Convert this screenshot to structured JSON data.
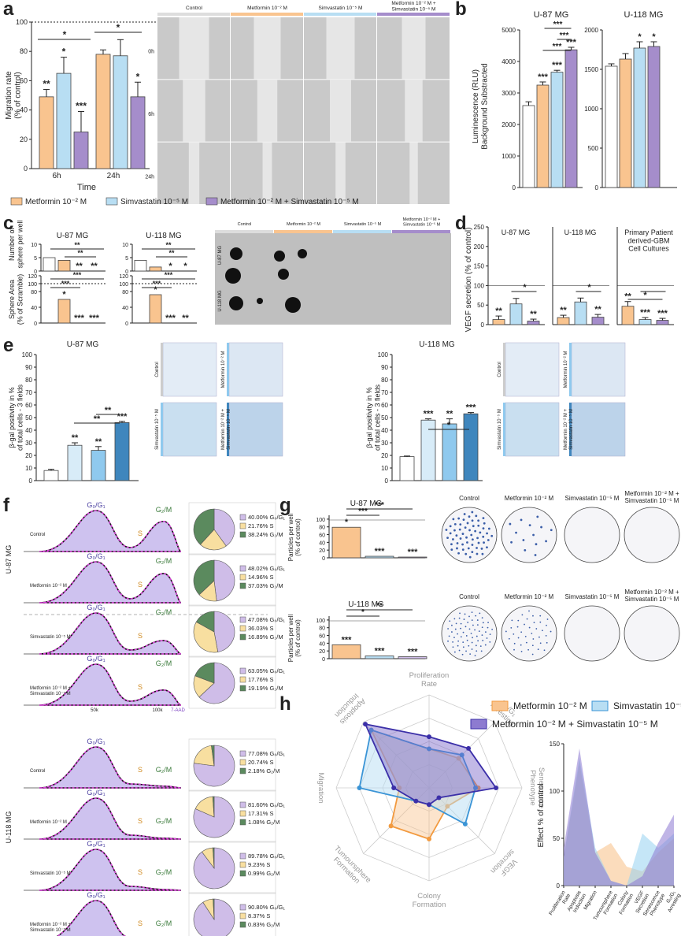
{
  "panel_labels": [
    "a",
    "b",
    "c",
    "d",
    "e",
    "f",
    "g",
    "h"
  ],
  "colors": {
    "control": "#ffffff",
    "metformin": "#f9c48f",
    "simvastatin": "#b8def3",
    "combo": "#a58dcb",
    "dark_combo": "#5b3fa8",
    "e_light": "#d8ecf8",
    "e_mid": "#8fc9ee",
    "e_dark": "#3f86bd",
    "g_combo": "#cfbde8"
  },
  "legend": {
    "metformin": "Metformin 10⁻² M",
    "simvastatin": "Simvastatin 10⁻⁵ M",
    "combo": "Metformin 10⁻² M + Simvastatin 10⁻⁵ M"
  },
  "panel_a": {
    "ylabel": "Migration rate\n(% of control)",
    "xlabel": "Time",
    "groups": [
      "6h",
      "24h"
    ],
    "yticks": [
      "0",
      "20",
      "40",
      "60",
      "80",
      "100"
    ],
    "values": [
      [
        49,
        65,
        25
      ],
      [
        78,
        77,
        49
      ]
    ],
    "errors": [
      [
        5,
        11,
        14
      ],
      [
        3,
        11,
        10
      ]
    ],
    "stars": [
      [
        "**",
        "*",
        "***"
      ],
      [
        "",
        "",
        "*"
      ]
    ],
    "bracket_star": "*",
    "image_cols": [
      "Control",
      "Metformin 10⁻² M",
      "Simvastatin 10⁻⁵ M",
      "Metformin 10⁻² M +\nSimvastatin 10⁻⁵ M"
    ],
    "image_rows": [
      "0h",
      "6h",
      "24h"
    ]
  },
  "panel_b": {
    "ylabel": "Luminescence (RLU)\nBackground Substracted",
    "charts": [
      {
        "title": "U-87 MG",
        "yticks": [
          "0",
          "1000",
          "2000",
          "3000",
          "4000",
          "5000"
        ],
        "ymax": 5000,
        "values": [
          2600,
          3250,
          3660,
          4370
        ],
        "errors": [
          120,
          100,
          60,
          80
        ],
        "stars": [
          "",
          "***",
          "***",
          "***"
        ],
        "brackets": [
          "***",
          "***",
          "***"
        ]
      },
      {
        "title": "U-118 MG",
        "yticks": [
          "0",
          "500",
          "1000",
          "1500",
          "2000"
        ],
        "ymax": 2000,
        "values": [
          1540,
          1630,
          1770,
          1790
        ],
        "errors": [
          30,
          70,
          80,
          60
        ],
        "stars": [
          "",
          "",
          "*",
          "*"
        ],
        "brackets": []
      }
    ]
  },
  "panel_c": {
    "ylabel_top": "Number of\nsphere per well",
    "ylabel_bottom": "Sphere Area\n(% of Scramble)",
    "charts": [
      {
        "title": "U-87 MG",
        "yticks_top": [
          "0",
          "5",
          "10"
        ],
        "top_values": [
          5,
          4,
          0,
          0
        ],
        "bottom_yticks": [
          "0",
          "20",
          "40",
          "60",
          "80",
          "100",
          "120"
        ],
        "bottom_values": [
          0,
          60,
          0,
          0
        ],
        "top_stars": [
          "",
          "",
          "**",
          "**"
        ],
        "bottom_stars": [
          "",
          "*",
          "***",
          "***"
        ],
        "top_brackets": [
          "**",
          "**"
        ],
        "bottom_brackets": [
          "***",
          "***"
        ]
      },
      {
        "title": "U-118 MG",
        "yticks_top": [
          "0",
          "5",
          "10"
        ],
        "top_values": [
          4,
          1.5,
          0,
          0
        ],
        "bottom_yticks": [
          "0",
          "20",
          "40",
          "60",
          "80",
          "100",
          "120"
        ],
        "bottom_values": [
          0,
          72,
          0,
          0
        ],
        "top_stars": [
          "",
          "",
          "*",
          "*"
        ],
        "bottom_stars": [
          "",
          "*",
          "***",
          "**"
        ],
        "top_brackets": [
          "**",
          "**"
        ],
        "bottom_brackets": [
          "***",
          "***"
        ]
      }
    ],
    "image_cols": [
      "Control",
      "Metformin 10⁻² M",
      "Simvastatin 10⁻⁵ M",
      "Metformin 10⁻² M +\nSimvastatin 10⁻⁵ M"
    ],
    "image_rows": [
      "U-87 MG",
      "U-118 MG"
    ]
  },
  "panel_d": {
    "ylabel": "VEGF secretion (% of control)",
    "yticks": [
      "0",
      "50",
      "100",
      "150",
      "200",
      "250"
    ],
    "charts": [
      {
        "title": "U-87 MG",
        "values": [
          13,
          53,
          9
        ],
        "errors": [
          9,
          14,
          5
        ],
        "stars": [
          "**",
          "",
          "**"
        ],
        "bracket": "*"
      },
      {
        "title": "U-118 MG",
        "values": [
          18,
          58,
          19
        ],
        "errors": [
          6,
          10,
          7
        ],
        "stars": [
          "**",
          "",
          "**"
        ],
        "bracket": "*"
      },
      {
        "title": "Primary Patient derived-GBM Cell Cultures",
        "values": [
          47,
          13,
          11
        ],
        "errors": [
          12,
          5,
          5
        ],
        "stars": [
          "**",
          "***",
          "***"
        ],
        "bracket": "*"
      }
    ]
  },
  "panel_e": {
    "ylabel": "β-gal positivity in %\nof total cells - 3 fields",
    "yticks": [
      "0",
      "10",
      "20",
      "30",
      "40",
      "50",
      "60",
      "70",
      "80",
      "90",
      "100"
    ],
    "charts": [
      {
        "title": "U-87 MG",
        "values": [
          8,
          28,
          24,
          46
        ],
        "errors": [
          1,
          2,
          3,
          1
        ],
        "stars": [
          "",
          "**",
          "**",
          "***"
        ],
        "brackets": [
          "**",
          "**"
        ]
      },
      {
        "title": "U-118 MG",
        "values": [
          19,
          48,
          45,
          53
        ],
        "errors": [
          0.5,
          1,
          4,
          1
        ],
        "stars": [
          "",
          "***",
          "**",
          "***"
        ],
        "brackets": [
          "*"
        ]
      }
    ],
    "img_u87": [
      "Control",
      "Metformin 10⁻² M",
      "Simvastatin 10⁻⁵ M",
      "Metformin 10⁻² M +\nSimvastatin 10⁻⁵ M"
    ],
    "img_u118": [
      "Control",
      "Metformin 10⁻² M",
      "Simvastatin 10⁻⁵ M",
      "Metformin 10⁻² M +\nSimvastatin 10⁻⁵ M"
    ]
  },
  "panel_f": {
    "cell_lines": [
      "U-87 MG",
      "U-118 MG"
    ],
    "peak_labels": {
      "g0g1": "G₀/G₁",
      "s": "S",
      "g2m": "G₂/M"
    },
    "axis_ticks": [
      "50k",
      "100k"
    ],
    "axis_label": "7-AAD",
    "rows": [
      {
        "label": "Control",
        "g0g1": "40.00%",
        "s": "21.76%",
        "g2m": "38.24%",
        "v": [
          40.0,
          21.76,
          38.24
        ]
      },
      {
        "label": "Metformin 10⁻² M",
        "g0g1": "48.02%",
        "s": "14.96%",
        "g2m": "37.03%",
        "v": [
          48.02,
          14.96,
          37.03
        ]
      },
      {
        "label": "Simvastatin 10⁻⁵ M",
        "g0g1": "47.08%",
        "s": "36.03%",
        "g2m": "16.89%",
        "v": [
          47.08,
          36.03,
          16.89
        ]
      },
      {
        "label": "Metformin 10⁻² M +\nSimvastatin 10⁻⁵ M",
        "g0g1": "63.05%",
        "s": "17.76%",
        "g2m": "19.19%",
        "v": [
          63.05,
          17.76,
          19.19
        ]
      },
      {
        "label": "Control",
        "g0g1": "77.08%",
        "s": "20.74%",
        "g2m": "2.18%",
        "v": [
          77.08,
          20.74,
          2.18
        ]
      },
      {
        "label": "Metformin 10⁻² M",
        "g0g1": "81.60%",
        "s": "17.31%",
        "g2m": "1.08%",
        "v": [
          81.6,
          17.31,
          1.08
        ]
      },
      {
        "label": "Simvastatin 10⁻⁵ M",
        "g0g1": "89.78%",
        "s": "9.23%",
        "g2m": "0.99%",
        "v": [
          89.78,
          9.23,
          0.99
        ]
      },
      {
        "label": "Metformin 10⁻² M +\nSimvastatin 10⁻⁵ M",
        "g0g1": "90.80%",
        "s": "8.37%",
        "g2m": "0.83%",
        "v": [
          90.8,
          8.37,
          0.83
        ]
      }
    ]
  },
  "panel_g": {
    "ylabel": "Particles per well\n(% of control)",
    "yticks": [
      "0",
      "20",
      "40",
      "60",
      "80",
      "100"
    ],
    "charts": [
      {
        "title": "U-87 MG",
        "values": [
          79,
          4,
          2
        ],
        "stars": [
          "*",
          "***",
          "***"
        ],
        "brackets": [
          "***",
          "***"
        ]
      },
      {
        "title": "U-118 MG",
        "values": [
          36,
          7,
          5
        ],
        "stars": [
          "***",
          "***",
          "***"
        ],
        "brackets": [
          "*",
          "**"
        ]
      }
    ],
    "img_cols": [
      "Control",
      "Metformin 10⁻² M",
      "Simvastatin 10⁻⁵ M",
      "Metformin 10⁻² M +\nSimvastatin 10⁻⁵ M"
    ]
  },
  "panel_h": {
    "axes": [
      "Proliferation\nRate",
      "G₀/G₁\nArresting",
      "Senescence\nPhenotype",
      "VEGF\nsecretion",
      "Colony\nFormation",
      "Tumoursphere\nFormation",
      "Migration",
      "Apoptosis\nInduction"
    ],
    "radar": {
      "metformin": [
        0.42,
        0.45,
        0.53,
        0.28,
        0.55,
        0.58,
        0.32,
        0.88
      ],
      "simvastatin": [
        0.42,
        0.5,
        0.5,
        0.55,
        0.18,
        0.2,
        0.75,
        0.88
      ],
      "combo": [
        0.55,
        0.6,
        0.72,
        0.15,
        0.18,
        0.2,
        0.38,
        0.97
      ]
    },
    "area_ylabel": "Effect % of control",
    "area_yticks": [
      "0",
      "50",
      "100",
      "150"
    ],
    "area_x": [
      "Proliferation\nRate",
      "Apoptosis\nInduction",
      "Migration",
      "Tumoursphere\nFormation",
      "Colony\nFormation",
      "VEGF\nSecretion",
      "Senescence\nPhenotype",
      "G₀/G₁\nArresting"
    ],
    "area_series": {
      "metformin": [
        30,
        130,
        35,
        45,
        20,
        15,
        35,
        50
      ],
      "simvastatin": [
        30,
        135,
        40,
        5,
        0,
        55,
        40,
        55
      ],
      "combo": [
        40,
        145,
        35,
        5,
        0,
        10,
        45,
        75
      ]
    }
  }
}
